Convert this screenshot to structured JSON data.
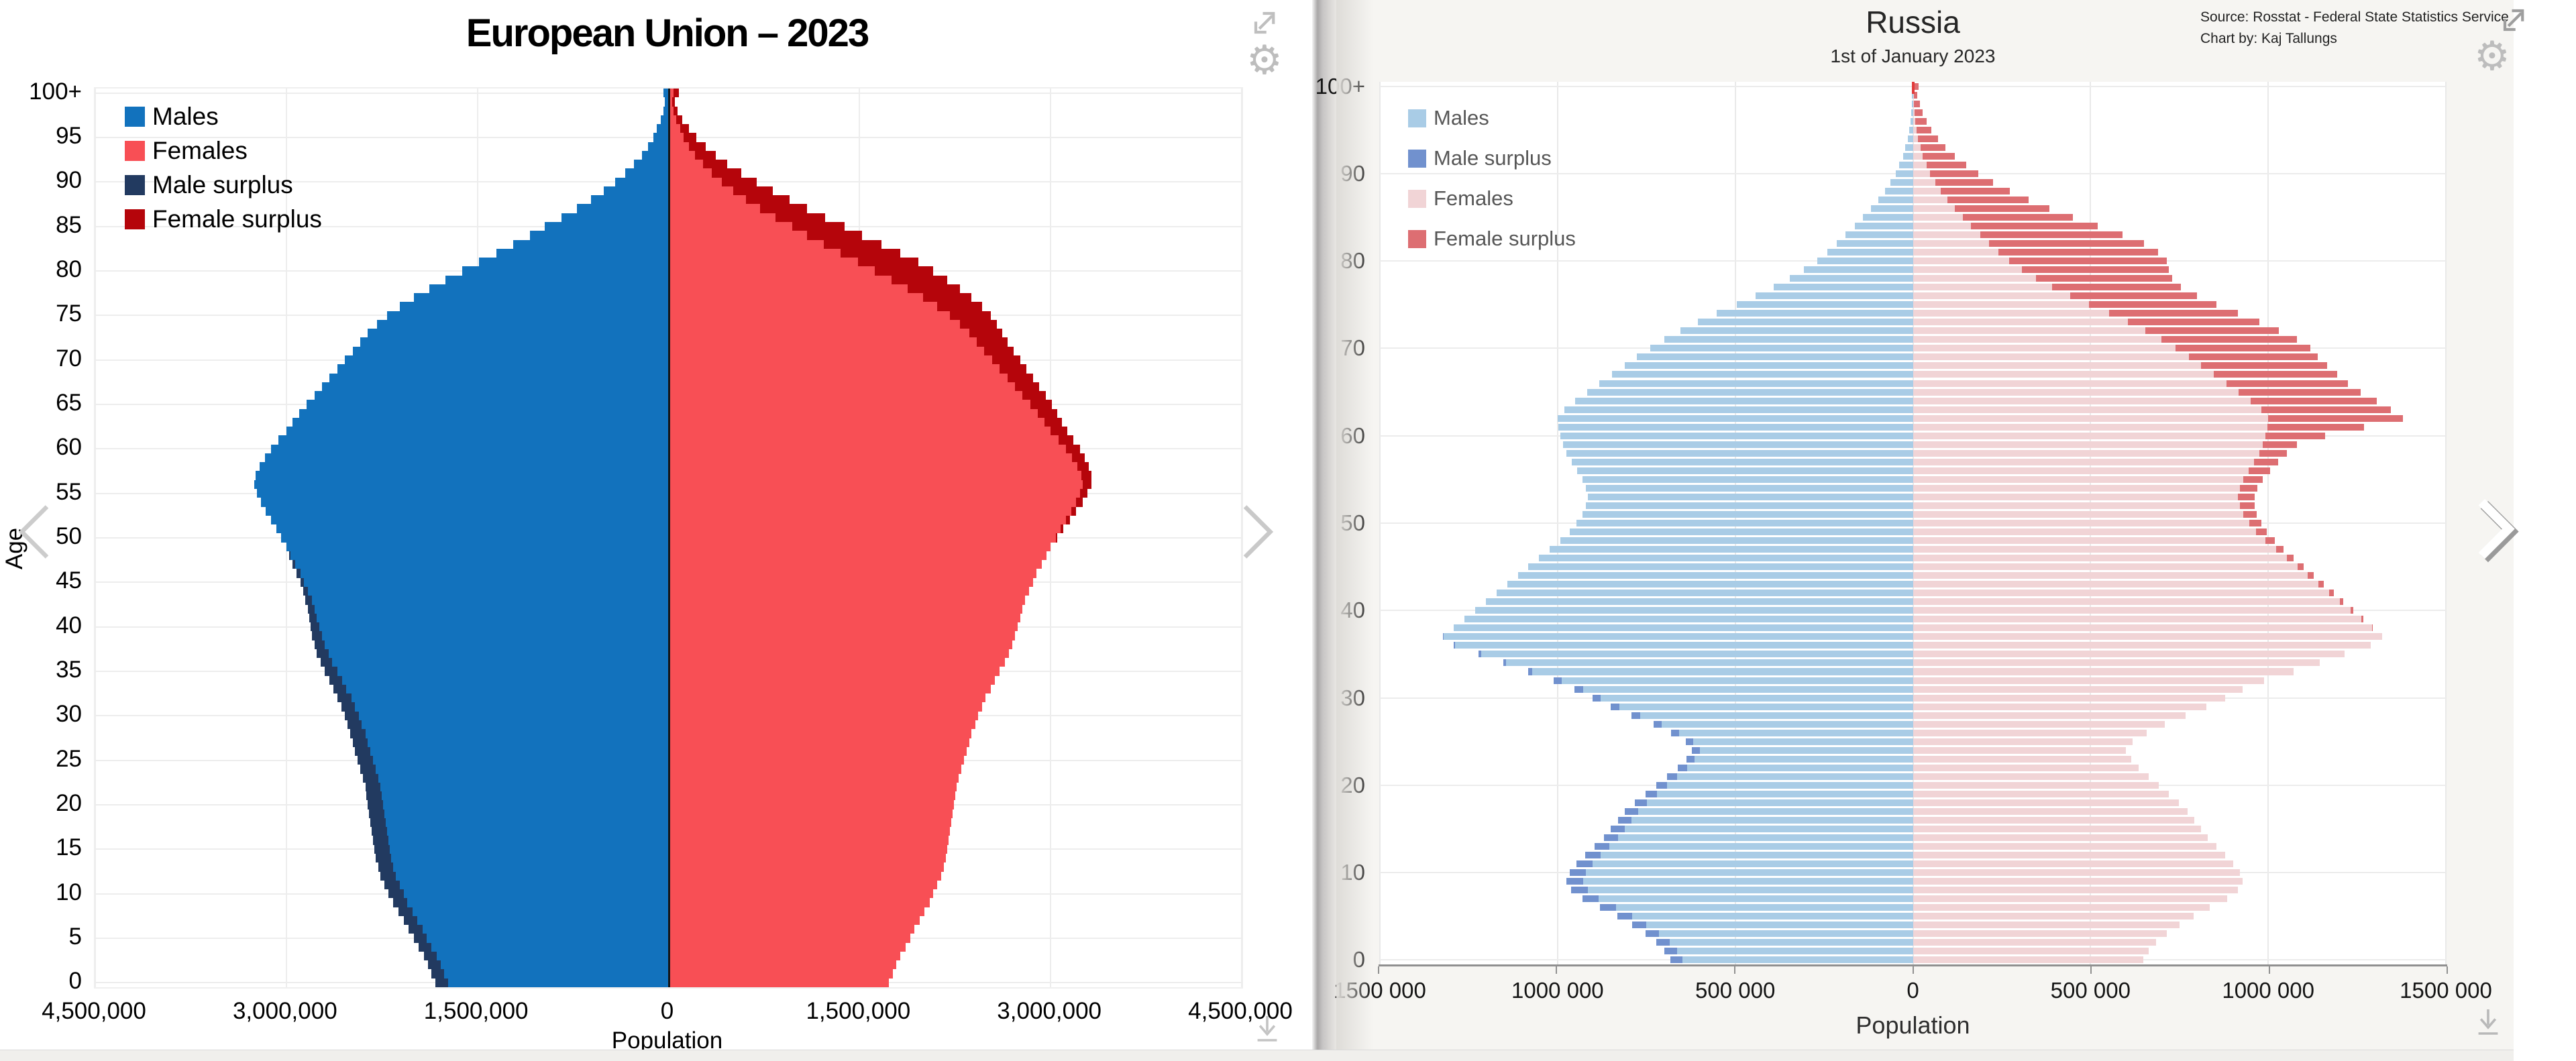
{
  "left_panel": {
    "title": "European Union – 2023",
    "legend": [
      {
        "label": "Males",
        "key": "males"
      },
      {
        "label": "Females",
        "key": "females"
      },
      {
        "label": "Male surplus",
        "key": "male_surplus"
      },
      {
        "label": "Female surplus",
        "key": "female_surplus"
      }
    ],
    "y_axis": {
      "title": "Age",
      "tick_step": 5,
      "tick_labels": [
        "0",
        "5",
        "10",
        "15",
        "20",
        "25",
        "30",
        "35",
        "40",
        "45",
        "50",
        "55",
        "60",
        "65",
        "70",
        "75",
        "80",
        "85",
        "90",
        "95",
        "100+"
      ]
    },
    "x_axis": {
      "title": "Population",
      "tick_labels": [
        "4,500,000",
        "3,000,000",
        "1,500,000",
        "0",
        "1,500,000",
        "3,000,000",
        "4,500,000"
      ]
    },
    "controls": {
      "prev": "chevron-left",
      "next": "chevron-right",
      "expand": "expand-arrow",
      "settings": "gear",
      "download": "download-arrow"
    }
  },
  "right_panel": {
    "title": "Russia",
    "subtitle": "1st of January 2023",
    "source": "Source: Rosstat - Federal State Statistics Service",
    "credit": "Chart by: Kaj Tallungs",
    "legend": [
      {
        "label": "Males",
        "key": "males"
      },
      {
        "label": "Male surplus",
        "key": "male_surplus"
      },
      {
        "label": "Females",
        "key": "females"
      },
      {
        "label": "Female surplus",
        "key": "female_surplus"
      }
    ],
    "y_axis": {
      "title": "",
      "tick_step": 10,
      "tick_labels": [
        "0",
        "10",
        "20",
        "30",
        "40",
        "50",
        "60",
        "70",
        "80",
        "90",
        "100+"
      ]
    },
    "x_axis": {
      "title": "Population",
      "tick_labels": [
        "1500 000",
        "1000 000",
        "500 000",
        "0",
        "500 000",
        "1000 000",
        "1500 000"
      ]
    },
    "controls": {
      "next": "chevron-right",
      "expand": "expand-arrow",
      "settings": "gear",
      "download": "download-arrow"
    }
  },
  "chart_data": [
    {
      "type": "bar",
      "subtype": "population_pyramid",
      "title": "European Union – 2023",
      "xlabel": "Population",
      "ylabel": "Age",
      "unit": "persons",
      "ages": {
        "min": 0,
        "max": 100,
        "bin_years": 1,
        "top_label": "100+"
      },
      "xlim": [
        -4500000,
        4500000
      ],
      "x_tick_step": 1500000,
      "grid": true,
      "legend_position": "top-left",
      "colors": {
        "males": "#1272bd",
        "females": "#f84f55",
        "male_surplus": "#223a60",
        "female_surplus": "#b5050b",
        "center_line": "#15171a"
      },
      "overlays_note": "Male surplus = max(0, males-females); Female surplus = max(0, females-males); drawn at bar tips",
      "series": [
        {
          "name": "Males",
          "side": "left",
          "values": [
            1830000,
            1860000,
            1890000,
            1920000,
            1960000,
            2000000,
            2040000,
            2080000,
            2120000,
            2160000,
            2200000,
            2230000,
            2260000,
            2280000,
            2300000,
            2310000,
            2320000,
            2330000,
            2340000,
            2350000,
            2360000,
            2370000,
            2380000,
            2400000,
            2420000,
            2440000,
            2460000,
            2480000,
            2500000,
            2520000,
            2540000,
            2570000,
            2600000,
            2630000,
            2660000,
            2700000,
            2730000,
            2760000,
            2780000,
            2800000,
            2810000,
            2820000,
            2830000,
            2850000,
            2870000,
            2890000,
            2920000,
            2950000,
            2980000,
            3000000,
            3040000,
            3080000,
            3120000,
            3160000,
            3200000,
            3230000,
            3250000,
            3240000,
            3210000,
            3170000,
            3120000,
            3060000,
            3000000,
            2950000,
            2900000,
            2840000,
            2780000,
            2720000,
            2660000,
            2600000,
            2540000,
            2480000,
            2420000,
            2360000,
            2290000,
            2210000,
            2110000,
            2000000,
            1880000,
            1750000,
            1620000,
            1490000,
            1350000,
            1220000,
            1090000,
            970000,
            840000,
            720000,
            610000,
            510000,
            420000,
            340000,
            270000,
            210000,
            160000,
            120000,
            90000,
            60000,
            40000,
            30000,
            40000
          ]
        },
        {
          "name": "Females",
          "side": "right",
          "values": [
            1730000,
            1760000,
            1790000,
            1820000,
            1860000,
            1900000,
            1930000,
            1970000,
            2010000,
            2050000,
            2080000,
            2110000,
            2140000,
            2160000,
            2180000,
            2190000,
            2200000,
            2210000,
            2220000,
            2230000,
            2240000,
            2250000,
            2260000,
            2280000,
            2300000,
            2320000,
            2340000,
            2360000,
            2380000,
            2410000,
            2430000,
            2460000,
            2490000,
            2530000,
            2560000,
            2600000,
            2640000,
            2670000,
            2700000,
            2720000,
            2740000,
            2760000,
            2780000,
            2800000,
            2830000,
            2860000,
            2890000,
            2930000,
            2970000,
            3000000,
            3050000,
            3100000,
            3150000,
            3200000,
            3250000,
            3290000,
            3320000,
            3320000,
            3300000,
            3270000,
            3230000,
            3180000,
            3130000,
            3090000,
            3050000,
            3010000,
            2960000,
            2910000,
            2860000,
            2810000,
            2760000,
            2710000,
            2660000,
            2620000,
            2580000,
            2530000,
            2460000,
            2380000,
            2290000,
            2190000,
            2080000,
            1960000,
            1820000,
            1670000,
            1520000,
            1380000,
            1230000,
            1090000,
            950000,
            820000,
            690000,
            570000,
            460000,
            370000,
            290000,
            220000,
            160000,
            110000,
            70000,
            50000,
            80000
          ]
        }
      ]
    },
    {
      "type": "bar",
      "subtype": "population_pyramid",
      "title": "Russia",
      "subtitle": "1st of January 2023",
      "xlabel": "Population",
      "ylabel": "",
      "unit": "persons",
      "ages": {
        "min": 0,
        "max": 100,
        "bin_years": 1,
        "top_label": "100+"
      },
      "xlim": [
        -1500000,
        1500000
      ],
      "x_tick_step": 500000,
      "grid": true,
      "legend_position": "top-left",
      "colors": {
        "males": "#a9cce6",
        "females": "#f1d4d6",
        "male_surplus": "#7191ce",
        "female_surplus": "#dd6e72",
        "center_tick": "#e23b3b"
      },
      "overlays_note": "Male surplus = max(0, males-females); Female surplus = max(0, females-males); drawn at bar tips",
      "series": [
        {
          "name": "Males",
          "side": "left",
          "values": [
            683000,
            700000,
            722000,
            752000,
            790000,
            832000,
            880000,
            930000,
            962000,
            975000,
            966000,
            946000,
            922000,
            896000,
            870000,
            850000,
            830000,
            810000,
            782000,
            752000,
            722000,
            692000,
            662000,
            638000,
            622000,
            640000,
            680000,
            730000,
            792000,
            850000,
            902000,
            952000,
            1012000,
            1082000,
            1152000,
            1222000,
            1292000,
            1322000,
            1292000,
            1262000,
            1232000,
            1202000,
            1172000,
            1142000,
            1112000,
            1082000,
            1052000,
            1022000,
            992000,
            966000,
            946000,
            930000,
            920000,
            915000,
            920000,
            930000,
            945000,
            960000,
            975000,
            985000,
            992000,
            997000,
            1000000,
            980000,
            950000,
            916000,
            882000,
            846000,
            810000,
            776000,
            740000,
            700000,
            655000,
            605000,
            552000,
            496000,
            442000,
            392000,
            346000,
            306000,
            270000,
            240000,
            214000,
            189000,
            164000,
            140000,
            118000,
            97000,
            79000,
            63000,
            49000,
            38000,
            28000,
            21000,
            15000,
            10000,
            7000,
            5000,
            3000,
            2000,
            3000
          ]
        },
        {
          "name": "Females",
          "side": "right",
          "values": [
            648000,
            664000,
            685000,
            714000,
            750000,
            790000,
            836000,
            884000,
            915000,
            928000,
            920000,
            901000,
            878000,
            854000,
            830000,
            811000,
            792000,
            774000,
            748000,
            720000,
            692000,
            664000,
            636000,
            614000,
            600000,
            618000,
            658000,
            708000,
            768000,
            826000,
            878000,
            928000,
            988000,
            1072000,
            1145000,
            1215000,
            1288000,
            1320000,
            1295000,
            1268000,
            1240000,
            1212000,
            1184000,
            1156000,
            1128000,
            1100000,
            1072000,
            1044000,
            1018000,
            996000,
            980000,
            968000,
            962000,
            961000,
            970000,
            985000,
            1005000,
            1028000,
            1052000,
            1080000,
            1160000,
            1270000,
            1380000,
            1345000,
            1305000,
            1260000,
            1225000,
            1195000,
            1165000,
            1140000,
            1118000,
            1080000,
            1030000,
            975000,
            915000,
            855000,
            800000,
            755000,
            730000,
            720000,
            715000,
            690000,
            650000,
            590000,
            520000,
            450000,
            385000,
            325000,
            272000,
            225000,
            185000,
            150000,
            118000,
            92000,
            70000,
            52000,
            38000,
            27000,
            19000,
            13000,
            16000
          ]
        }
      ]
    }
  ]
}
